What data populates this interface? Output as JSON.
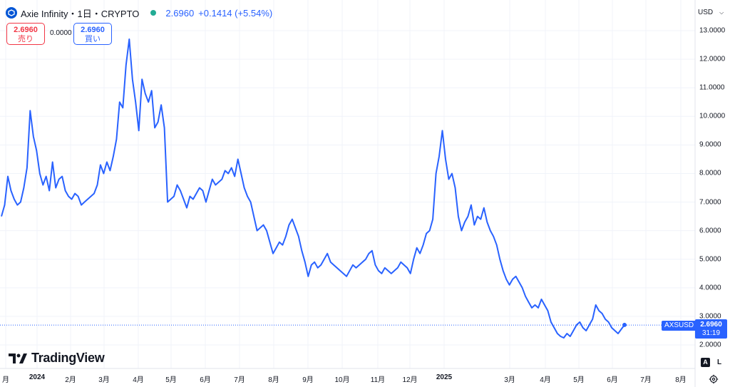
{
  "header": {
    "title": "Axie Infinity・1日・CRYPTO",
    "price": "2.6960",
    "change": "+0.1414 (+5.54%)",
    "currency": "USD"
  },
  "trade": {
    "sell_price": "2.6960",
    "sell_label": "売り",
    "spread": "0.0000",
    "buy_price": "2.6960",
    "buy_label": "買い"
  },
  "last": {
    "symbol": "AXSUSD",
    "price": "2.6960",
    "countdown": "31:19"
  },
  "branding": {
    "text": "TradingView"
  },
  "controls": {
    "auto_label": "A",
    "log_label": "L"
  },
  "colors": {
    "line": "#2962ff",
    "sell": "#f23645",
    "buy": "#2962ff",
    "dot": "#22ab94"
  },
  "chart_data": {
    "type": "line",
    "symbol": "AXSUSD",
    "y_axis_labels": [
      "13.0000",
      "12.0000",
      "11.0000",
      "10.0000",
      "9.0000",
      "8.0000",
      "7.0000",
      "6.0000",
      "5.0000",
      "4.0000",
      "3.0000",
      "2.0000"
    ],
    "x_axis_labels": [
      "月",
      "2024",
      "2月",
      "3月",
      "4月",
      "5月",
      "6月",
      "7月",
      "8月",
      "9月",
      "10月",
      "11月",
      "12月",
      "2025",
      "3月",
      "4月",
      "5月",
      "6月",
      "7月",
      "8月"
    ],
    "ylim": [
      1.8,
      13.35
    ],
    "grid": true,
    "series": [
      {
        "values": [
          6.5,
          6.9,
          7.9,
          7.4,
          7.1,
          6.9,
          7.0,
          7.5,
          8.2,
          10.2,
          9.3,
          8.8,
          8.0,
          7.6,
          7.9,
          7.4,
          8.4,
          7.5,
          7.8,
          7.9,
          7.4,
          7.2,
          7.1,
          7.3,
          7.2,
          6.9,
          7.0,
          7.1,
          7.2,
          7.3,
          7.6,
          8.3,
          8.0,
          8.4,
          8.1,
          8.6,
          9.2,
          10.5,
          10.3,
          11.8,
          12.7,
          11.3,
          10.5,
          9.5,
          11.3,
          10.8,
          10.5,
          10.9,
          9.6,
          9.8,
          10.4,
          9.6,
          7.0,
          7.1,
          7.2,
          7.6,
          7.4,
          7.1,
          6.8,
          7.2,
          7.1,
          7.3,
          7.5,
          7.4,
          7.0,
          7.4,
          7.8,
          7.6,
          7.7,
          7.8,
          8.1,
          8.0,
          8.2,
          7.9,
          8.5,
          8.0,
          7.5,
          7.2,
          7.0,
          6.5,
          6.0,
          6.1,
          6.2,
          6.0,
          5.6,
          5.2,
          5.4,
          5.6,
          5.5,
          5.8,
          6.2,
          6.4,
          6.1,
          5.8,
          5.3,
          4.9,
          4.4,
          4.8,
          4.9,
          4.7,
          4.8,
          5.0,
          5.2,
          4.9,
          4.8,
          4.7,
          4.6,
          4.5,
          4.4,
          4.6,
          4.8,
          4.7,
          4.8,
          4.9,
          5.0,
          5.2,
          5.3,
          4.8,
          4.6,
          4.5,
          4.7,
          4.6,
          4.5,
          4.6,
          4.7,
          4.9,
          4.8,
          4.7,
          4.5,
          5.0,
          5.4,
          5.2,
          5.5,
          5.9,
          6.0,
          6.4,
          8.0,
          8.6,
          9.5,
          8.5,
          7.8,
          8.0,
          7.5,
          6.5,
          6.0,
          6.3,
          6.5,
          6.9,
          6.2,
          6.5,
          6.4,
          6.8,
          6.3,
          6.0,
          5.8,
          5.5,
          5.0,
          4.6,
          4.3,
          4.1,
          4.3,
          4.4,
          4.2,
          4.0,
          3.7,
          3.5,
          3.3,
          3.4,
          3.3,
          3.6,
          3.4,
          3.2,
          2.8,
          2.6,
          2.4,
          2.3,
          2.25,
          2.4,
          2.3,
          2.5,
          2.7,
          2.8,
          2.6,
          2.5,
          2.7,
          2.9,
          3.4,
          3.2,
          3.1,
          2.9,
          2.8,
          2.6,
          2.5,
          2.4,
          2.55,
          2.7
        ]
      }
    ]
  }
}
